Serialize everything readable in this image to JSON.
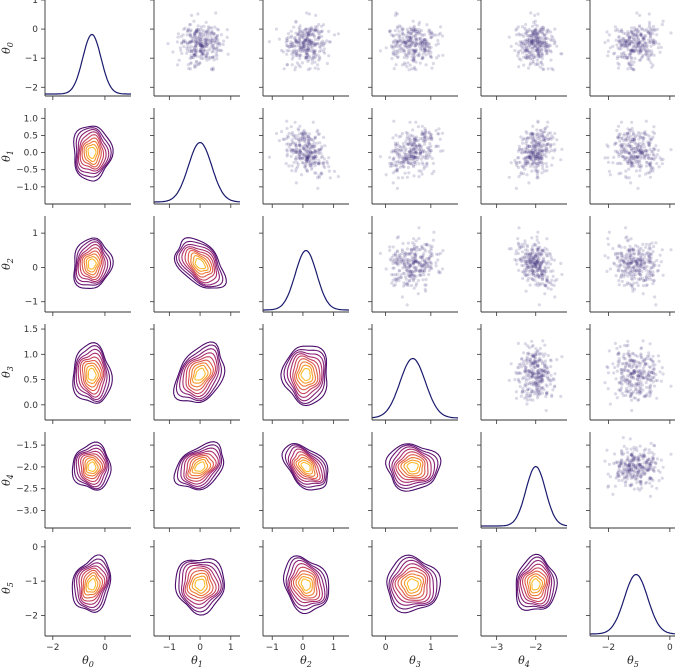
{
  "chart_data": {
    "type": "pairplot",
    "variables": [
      "θ0",
      "θ1",
      "θ2",
      "θ3",
      "θ4",
      "θ5"
    ],
    "axis_labels": [
      {
        "symbol": "θ",
        "sub": "0"
      },
      {
        "symbol": "θ",
        "sub": "1"
      },
      {
        "symbol": "θ",
        "sub": "2"
      },
      {
        "symbol": "θ",
        "sub": "3"
      },
      {
        "symbol": "θ",
        "sub": "4"
      },
      {
        "symbol": "θ",
        "sub": "5"
      }
    ],
    "ranges": [
      [
        -2.3,
        1.0
      ],
      [
        -1.5,
        1.3
      ],
      [
        -1.3,
        1.5
      ],
      [
        -0.3,
        1.6
      ],
      [
        -3.4,
        -1.2
      ],
      [
        -2.6,
        0.2
      ]
    ],
    "x_ticks": [
      [
        "−2",
        "0"
      ],
      [
        "−1",
        "0",
        "1"
      ],
      [
        "−1",
        "0",
        "1"
      ],
      [
        "0",
        "1"
      ],
      [
        "−3",
        "−2"
      ],
      [
        "−2",
        "0"
      ]
    ],
    "x_tick_values": [
      [
        -2,
        0
      ],
      [
        -1,
        0,
        1
      ],
      [
        -1,
        0,
        1
      ],
      [
        0,
        1
      ],
      [
        -3,
        -2
      ],
      [
        -2,
        0
      ]
    ],
    "y_ticks": [
      [
        "1",
        "0",
        "−1",
        "−2"
      ],
      [
        "1.0",
        "0.5",
        "0.0",
        "−0.5",
        "−1.0"
      ],
      [
        "1",
        "0",
        "−1"
      ],
      [
        "1.5",
        "1.0",
        "0.5",
        "0.0"
      ],
      [
        "−1.5",
        "−2.0",
        "−2.5",
        "−3.0"
      ],
      [
        "0",
        "−1",
        "−2"
      ]
    ],
    "y_tick_values": [
      [
        1,
        0,
        -1,
        -2
      ],
      [
        1,
        0.5,
        0,
        -0.5,
        -1
      ],
      [
        1,
        0,
        -1
      ],
      [
        1.5,
        1,
        0.5,
        0
      ],
      [
        -1.5,
        -2,
        -2.5,
        -3
      ],
      [
        0,
        -1,
        -2
      ]
    ],
    "means": [
      -0.5,
      0.0,
      0.1,
      0.6,
      -2.0,
      -1.1
    ],
    "sds": [
      0.35,
      0.38,
      0.35,
      0.28,
      0.25,
      0.38
    ],
    "correlations": [
      [
        1.0,
        0.0,
        0.1,
        -0.05,
        0.0,
        0.2
      ],
      [
        0.0,
        1.0,
        -0.45,
        0.35,
        0.35,
        0.0
      ],
      [
        0.1,
        -0.45,
        1.0,
        0.0,
        -0.45,
        -0.2
      ],
      [
        -0.05,
        0.35,
        0.0,
        1.0,
        0.0,
        0.0
      ],
      [
        0.0,
        0.35,
        -0.45,
        0.0,
        1.0,
        0.05
      ],
      [
        0.2,
        0.0,
        -0.2,
        0.0,
        0.05,
        1.0
      ]
    ],
    "n_samples": 300,
    "upper": "scatter",
    "lower": "kde-contour",
    "diagonal": "kde-1d",
    "colors": {
      "scatter": "#3b2f7a",
      "diagonal": "#1a1a6e",
      "contours": [
        "#4b0c6b",
        "#6a1a74",
        "#8a2277",
        "#a92e6e",
        "#c6425e",
        "#dc5a4b",
        "#ec7838",
        "#f69a2a",
        "#fbbd2e"
      ]
    }
  }
}
